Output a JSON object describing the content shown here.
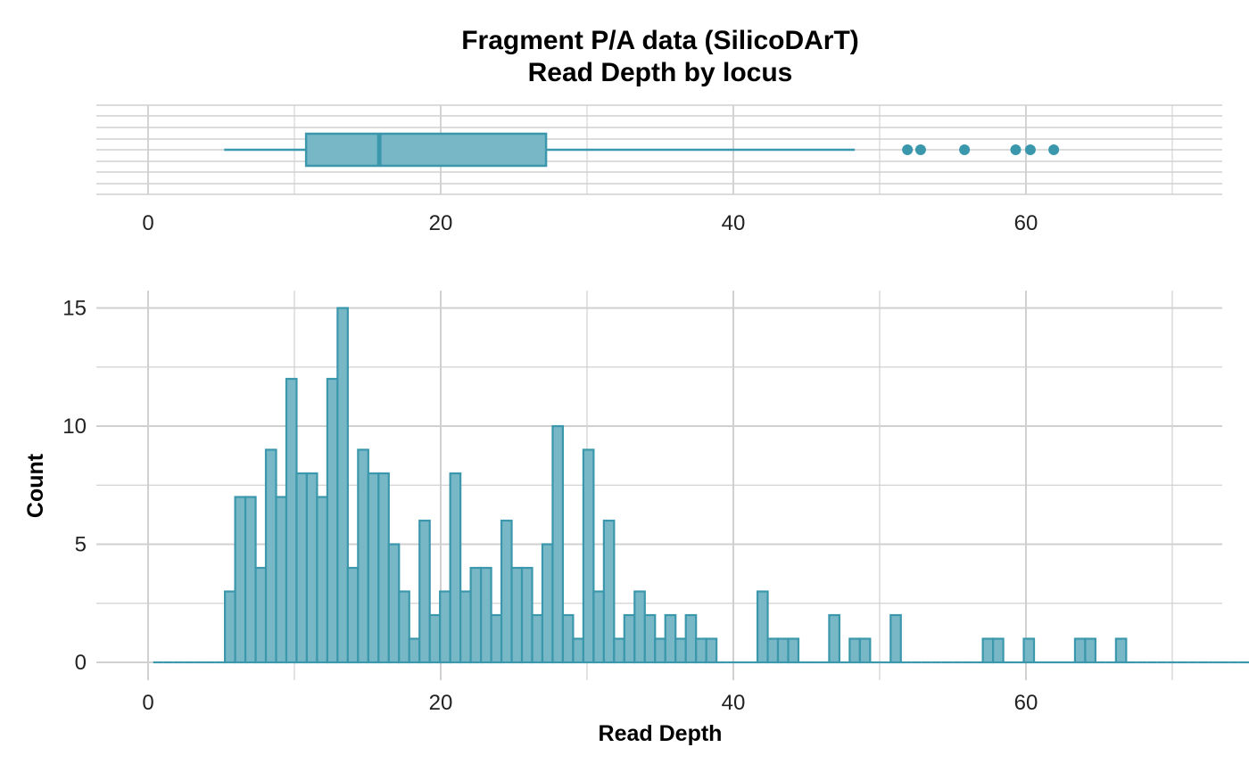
{
  "chart_data": {
    "title": "Fragment P/A data (SilicoDArT)",
    "subtitle": "Read Depth by locus",
    "colors": {
      "fill": "#78B8C6",
      "stroke": "#3A97AC",
      "grid": "#D0D0D0"
    },
    "boxplot": {
      "type": "box",
      "xlim": [
        0,
        70
      ],
      "x_ticks": [
        0,
        20,
        40,
        60
      ],
      "whisker_low": 5.2,
      "q1": 10.8,
      "median": 15.8,
      "q3": 27.2,
      "whisker_high": 48.3,
      "outliers": [
        51.9,
        52.8,
        55.8,
        59.3,
        60.3,
        61.9
      ]
    },
    "histogram": {
      "type": "bar",
      "xlabel": "Read Depth",
      "ylabel": "Count",
      "xlim": [
        0,
        70
      ],
      "ylim": [
        0,
        15
      ],
      "x_ticks": [
        0,
        20,
        40,
        60
      ],
      "y_ticks": [
        0,
        5,
        10,
        15
      ],
      "bin_width": 0.7,
      "bin_start": 0.35,
      "counts": [
        0,
        0,
        0,
        0,
        0,
        0,
        0,
        3,
        7,
        7,
        4,
        9,
        7,
        12,
        8,
        8,
        7,
        12,
        15,
        4,
        9,
        8,
        8,
        5,
        3,
        1,
        6,
        2,
        3,
        8,
        3,
        4,
        4,
        2,
        6,
        4,
        4,
        2,
        5,
        10,
        2,
        1,
        9,
        3,
        6,
        1,
        2,
        3,
        2,
        1,
        2,
        1,
        2,
        1,
        1,
        0,
        0,
        0,
        0,
        3,
        1,
        1,
        1,
        0,
        0,
        0,
        2,
        0,
        1,
        1,
        0,
        0,
        2,
        0,
        0,
        0,
        0,
        0,
        0,
        0,
        0,
        1,
        1,
        0,
        0,
        1,
        0,
        0,
        0,
        0,
        1,
        1,
        0,
        0,
        1,
        0,
        0,
        0,
        0,
        0,
        0,
        0,
        0,
        0,
        0,
        0,
        0
      ]
    }
  }
}
